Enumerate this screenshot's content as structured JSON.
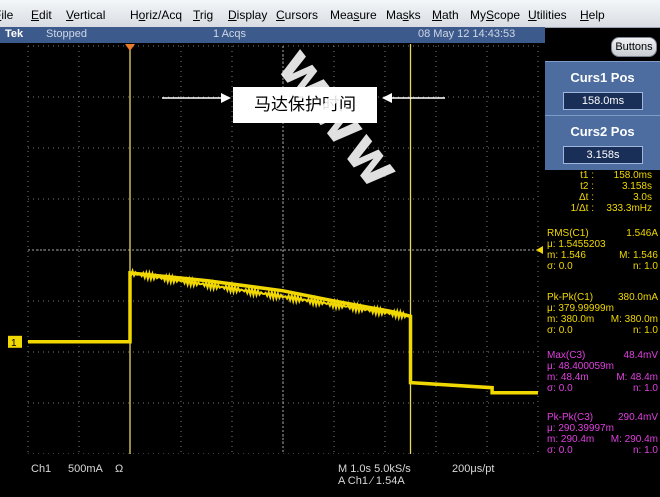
{
  "menu": [
    {
      "pre": "",
      "ul": "F",
      "post": "ile",
      "left": -6
    },
    {
      "pre": "",
      "ul": "E",
      "post": "dit",
      "left": 31
    },
    {
      "pre": "",
      "ul": "V",
      "post": "ertical",
      "left": 66
    },
    {
      "pre": "H",
      "ul": "o",
      "post": "riz/Acq",
      "left": 130
    },
    {
      "pre": "",
      "ul": "T",
      "post": "rig",
      "left": 193
    },
    {
      "pre": "",
      "ul": "D",
      "post": "isplay",
      "left": 228
    },
    {
      "pre": "",
      "ul": "C",
      "post": "ursors",
      "left": 276
    },
    {
      "pre": "Mea",
      "ul": "s",
      "post": "ure",
      "left": 330
    },
    {
      "pre": "Ma",
      "ul": "s",
      "post": "ks",
      "left": 386
    },
    {
      "pre": "",
      "ul": "M",
      "post": "ath",
      "left": 432
    },
    {
      "pre": "My",
      "ul": "S",
      "post": "cope",
      "left": 470
    },
    {
      "pre": "",
      "ul": "U",
      "post": "tilities",
      "left": 528
    },
    {
      "pre": "",
      "ul": "H",
      "post": "elp",
      "left": 580
    }
  ],
  "status": {
    "brand": "Tek",
    "state": "Stopped",
    "acqs": "1 Acqs",
    "datetime": "08 May 12 14:43:53"
  },
  "buttons_label": "Buttons",
  "curs1": {
    "title": "Curs1 Pos",
    "value": "158.0ms"
  },
  "curs2": {
    "title": "Curs2 Pos",
    "value": "3.158s"
  },
  "cursor_readout": [
    {
      "label": "t1 :",
      "value": "158.0ms"
    },
    {
      "label": "t2 :",
      "value": "3.158s"
    },
    {
      "label": "Δt :",
      "value": "3.0s"
    },
    {
      "label": "1/Δt :",
      "value": "333.3mHz"
    }
  ],
  "measurements": [
    {
      "name": "RMS(C1)",
      "value": "1.546A",
      "mu": "μ: 1.5455203",
      "m": "m: 1.546",
      "M": "M: 1.546",
      "sigma": "σ: 0.0",
      "n": "n: 1.0",
      "color": "#f1d800"
    },
    {
      "name": "Pk-Pk(C1)",
      "value": "380.0mA",
      "mu": "μ: 379.99999m",
      "m": "m: 380.0m",
      "M": "M: 380.0m",
      "sigma": "σ: 0.0",
      "n": "n: 1.0",
      "color": "#f1d800"
    },
    {
      "name": "Max(C3)",
      "value": "48.4mV",
      "mu": "μ: 48.400059m",
      "m": "m: 48.4m",
      "M": "M: 48.4m",
      "sigma": "σ: 0.0",
      "n": "n: 1.0",
      "color": "#e040e0"
    },
    {
      "name": "Pk-Pk(C3)",
      "value": "290.4mV",
      "mu": "μ: 290.39997m",
      "m": "m: 290.4m",
      "M": "M: 290.4m",
      "sigma": "σ: 0.0",
      "n": "n: 1.0",
      "color": "#e040e0"
    }
  ],
  "footer": {
    "channel": "Ch1",
    "scale": "500mA",
    "unit": "Ω",
    "timebase": "M 1.0s 5.0kS/s",
    "trigger": "A Ch1 ∕ 1.54A",
    "resolution": "200μs/pt"
  },
  "channel_marker": "1",
  "annotation": "马达保护时间",
  "watermark": "www",
  "colors": {
    "trace": "#f1d800",
    "cursor": "#e8d860",
    "grid": "#7a7a7a",
    "panel": "#4d6da0",
    "statusbar": "#3d5a8c"
  },
  "chart_data": {
    "type": "line",
    "series": [
      {
        "color": "#f1d800",
        "points_div": [
          [
            0,
            2.2
          ],
          [
            2,
            2.2
          ],
          [
            2,
            3.55
          ],
          [
            3.5,
            3.4
          ],
          [
            5,
            3.2
          ],
          [
            6,
            3.0
          ],
          [
            7.1,
            2.8
          ],
          [
            7.5,
            2.7
          ],
          [
            7.5,
            1.4
          ],
          [
            9.1,
            1.3
          ],
          [
            9.1,
            1.2
          ],
          [
            10,
            1.2
          ]
        ]
      }
    ],
    "divisions": {
      "x": 10,
      "y": 8
    },
    "cursors_div": [
      2,
      7.5
    ]
  }
}
